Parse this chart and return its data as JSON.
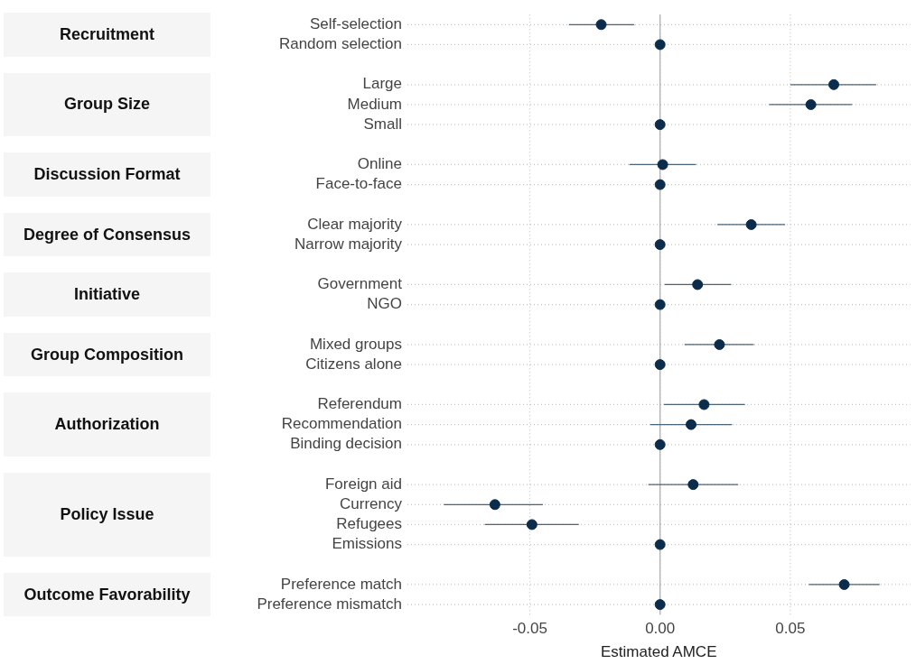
{
  "chart_data": {
    "type": "scatter",
    "orientation": "horizontal",
    "categories": [
      "Self-selection",
      "Random selection",
      null,
      "Large",
      "Medium",
      "Small",
      null,
      "Online",
      "Face-to-face",
      null,
      "Clear majority",
      "Narrow majority",
      null,
      "Government",
      "NGO",
      null,
      "Mixed groups",
      "Citizens alone",
      null,
      "Referendum",
      "Recommendation",
      "Binding decision",
      null,
      "Foreign aid",
      "Currency",
      "Refugees",
      "Emissions",
      null,
      "Preference match",
      "Preference mismatch"
    ],
    "values": [
      -0.0226,
      0,
      null,
      0.0667,
      0.0579,
      0,
      null,
      0.001,
      0,
      null,
      0.035,
      0,
      null,
      0.0144,
      0,
      null,
      0.0228,
      0,
      null,
      0.0169,
      0.0119,
      0,
      null,
      0.0127,
      -0.0634,
      -0.0492,
      0,
      null,
      0.0707,
      0
    ],
    "errors": [
      [
        -0.035,
        -0.0099
      ],
      null,
      null,
      [
        0.05,
        0.083
      ],
      [
        0.0419,
        0.0737
      ],
      null,
      null,
      [
        -0.0118,
        0.0138
      ],
      null,
      null,
      [
        0.022,
        0.048
      ],
      null,
      null,
      [
        0.0018,
        0.0273
      ],
      null,
      null,
      [
        0.0094,
        0.036
      ],
      null,
      null,
      [
        0.0014,
        0.0326
      ],
      [
        -0.0038,
        0.0276
      ],
      null,
      null,
      [
        -0.0045,
        0.03
      ],
      [
        -0.083,
        -0.045
      ],
      [
        -0.0673,
        -0.0312
      ],
      null,
      null,
      [
        0.0571,
        0.0843
      ],
      null
    ],
    "color": "#0b2c4b",
    "marker": "circle",
    "xlim": [
      -0.097,
      0.096
    ],
    "xticks": [
      -0.05,
      {
        "value": 0,
        "label": "0.00"
      },
      0.05
    ],
    "grid": true,
    "xlabel": "Estimated AMCE",
    "ref_lines": [
      {
        "axis": "x",
        "value": 0,
        "color": "#b0b0b0"
      }
    ],
    "annotations": [
      "Recruitment",
      "Group Size",
      "Discussion Format",
      "Degree of Consensus",
      "Initiative",
      "Group Composition",
      "Authorization",
      "Policy Issue",
      "Outcome Favorability"
    ]
  }
}
